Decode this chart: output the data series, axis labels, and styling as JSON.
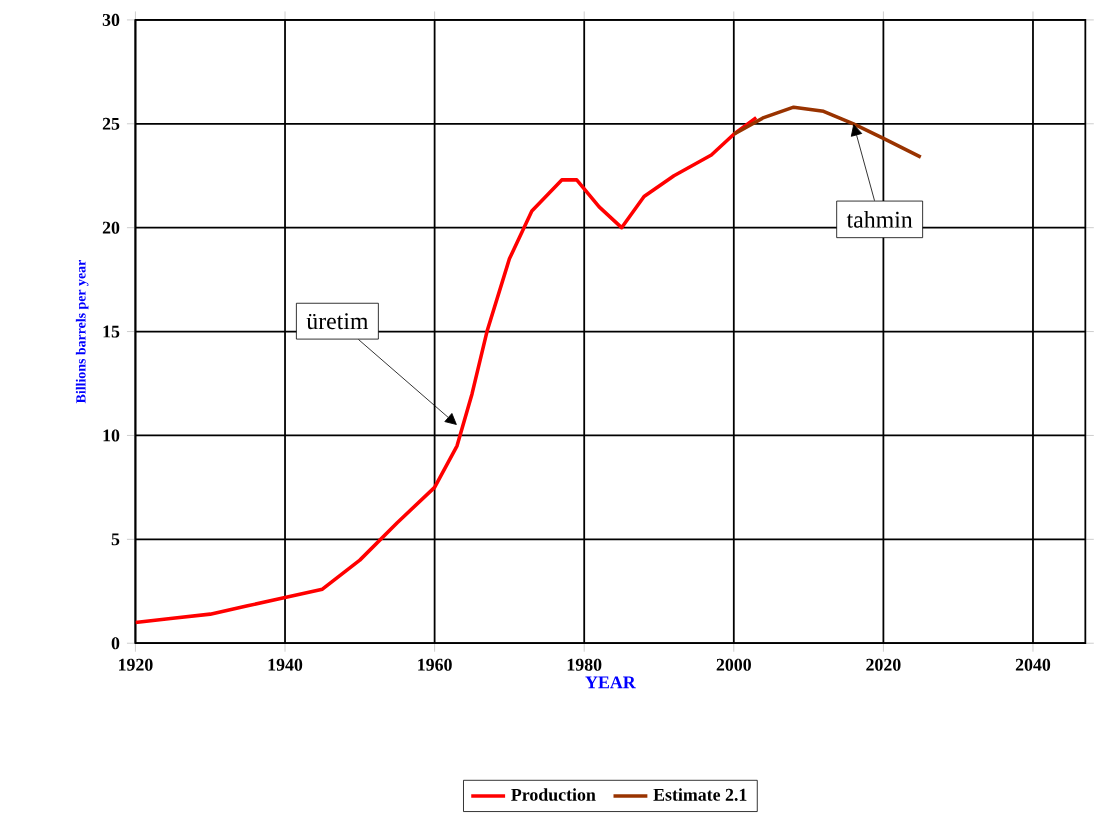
{
  "chart_data": {
    "type": "line",
    "xlabel": "YEAR",
    "ylabel": "Billions barrels per year",
    "xlim": [
      1920,
      2047
    ],
    "ylim": [
      0,
      30
    ],
    "xticks": [
      1920,
      1940,
      1960,
      1980,
      2000,
      2020,
      2040
    ],
    "yticks": [
      0,
      5,
      10,
      15,
      20,
      25,
      30
    ],
    "grid": true,
    "legend": "bottom",
    "marker": "none",
    "line_style": "solid",
    "series": [
      {
        "name": "Production",
        "color": "#ff0000",
        "x": [
          1920,
          1925,
          1930,
          1935,
          1940,
          1945,
          1950,
          1955,
          1960,
          1963,
          1965,
          1967,
          1970,
          1973,
          1977,
          1979,
          1982,
          1985,
          1988,
          1992,
          1997,
          2000,
          2003
        ],
        "values": [
          1.0,
          1.2,
          1.4,
          1.8,
          2.2,
          2.6,
          4.0,
          5.8,
          7.5,
          9.5,
          12,
          15,
          18.5,
          20.8,
          22.3,
          22.3,
          21,
          20,
          21.5,
          22.5,
          23.5,
          24.5,
          25.3
        ]
      },
      {
        "name": "Estimate 2.1",
        "color": "#993300",
        "x": [
          2000,
          2004,
          2008,
          2012,
          2016,
          2020,
          2025
        ],
        "values": [
          24.5,
          25.3,
          25.8,
          25.6,
          25.0,
          24.3,
          23.4
        ]
      }
    ],
    "annotations": [
      {
        "text": "üretim",
        "x": 1963,
        "y": 10.5
      },
      {
        "text": "tahmin",
        "x": 2016,
        "y": 25
      }
    ]
  }
}
